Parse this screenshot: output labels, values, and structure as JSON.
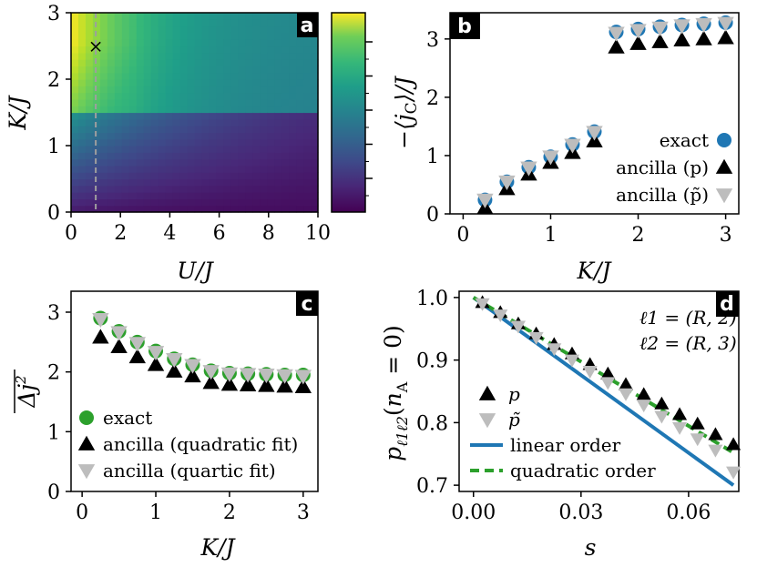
{
  "chart_data": [
    {
      "panel": "a",
      "type": "heatmap",
      "xlabel": "U/J",
      "ylabel": "K/J",
      "xlim": [
        0,
        10
      ],
      "ylim": [
        0,
        3
      ],
      "xticks": [
        "0",
        "2",
        "4",
        "6",
        "8",
        "10"
      ],
      "yticks": [
        "0",
        "1",
        "2",
        "3"
      ],
      "colormap": "viridis",
      "marker": {
        "x": 1.0,
        "y": 2.5,
        "symbol": "×",
        "color": "#9e9e9e"
      },
      "dashed_line_x": 1.0,
      "regime_boundary_k": 1.5,
      "colorbar": {
        "ticks": 5
      }
    },
    {
      "panel": "b",
      "type": "scatter",
      "xlabel": "K/J",
      "ylabel": "−⟨jc⟩/J",
      "xlim": [
        -0.15,
        3.15
      ],
      "ylim": [
        0,
        3.45
      ],
      "xticks": [
        0,
        1,
        2,
        3
      ],
      "yticks": [
        0,
        1,
        2,
        3
      ],
      "x": [
        0.25,
        0.5,
        0.75,
        1.0,
        1.25,
        1.5,
        1.75,
        2.0,
        2.25,
        2.5,
        2.75,
        3.0
      ],
      "series": [
        {
          "name": "exact",
          "marker": "circle",
          "color": "#1f77b4",
          "values": [
            0.24,
            0.55,
            0.8,
            0.98,
            1.19,
            1.41,
            3.12,
            3.17,
            3.21,
            3.24,
            3.26,
            3.28
          ]
        },
        {
          "name": "ancilla (p)",
          "marker": "triangle-up",
          "color": "#000000",
          "values": [
            0.1,
            0.43,
            0.68,
            0.88,
            1.05,
            1.25,
            2.86,
            2.92,
            2.95,
            2.98,
            3.0,
            3.02
          ]
        },
        {
          "name": "ancilla (p̃)",
          "marker": "triangle-down",
          "color": "#bdbdbd",
          "values": [
            0.24,
            0.55,
            0.79,
            0.98,
            1.18,
            1.4,
            3.1,
            3.15,
            3.19,
            3.23,
            3.25,
            3.27
          ]
        }
      ],
      "legend": "lower-right"
    },
    {
      "panel": "c",
      "type": "scatter",
      "xlabel": "K/J",
      "ylabel": "Δj²",
      "xlim": [
        -0.15,
        3.2
      ],
      "ylim": [
        0,
        3.35
      ],
      "xticks": [
        0,
        1,
        2,
        3
      ],
      "yticks": [
        0,
        1,
        2,
        3
      ],
      "x": [
        0.25,
        0.5,
        0.75,
        1.0,
        1.25,
        1.5,
        1.75,
        2.0,
        2.25,
        2.5,
        2.75,
        3.0
      ],
      "series": [
        {
          "name": "exact",
          "marker": "circle",
          "color": "#2ca02c",
          "values": [
            2.9,
            2.68,
            2.5,
            2.35,
            2.22,
            2.12,
            2.02,
            1.98,
            1.97,
            1.96,
            1.95,
            1.95
          ]
        },
        {
          "name": "ancilla (quadratic fit)",
          "marker": "triangle-up",
          "color": "#000000",
          "values": [
            2.58,
            2.42,
            2.25,
            2.12,
            2.01,
            1.93,
            1.82,
            1.79,
            1.78,
            1.77,
            1.76,
            1.75
          ]
        },
        {
          "name": "ancilla (quartic fit)",
          "marker": "triangle-down",
          "color": "#bdbdbd",
          "values": [
            2.88,
            2.66,
            2.48,
            2.33,
            2.21,
            2.11,
            2.01,
            1.97,
            1.96,
            1.95,
            1.94,
            1.93
          ]
        }
      ],
      "legend": "lower-left"
    },
    {
      "panel": "d",
      "type": "line",
      "xlabel": "s",
      "ylabel": "pℓ1ℓ2(nA = 0)",
      "xlim": [
        -0.004,
        0.074
      ],
      "ylim": [
        0.69,
        1.01
      ],
      "xticks": [
        "0.00",
        "0.03",
        "0.06"
      ],
      "xtick_values": [
        0.0,
        0.03,
        0.06
      ],
      "yticks": [
        "0.7",
        "0.8",
        "0.9",
        "1.0"
      ],
      "ytick_values": [
        0.7,
        0.8,
        0.9,
        1.0
      ],
      "annotation": [
        "ℓ1 = (R, 2)",
        "ℓ2 = (R, 3)"
      ],
      "x": [
        0.0025,
        0.0075,
        0.0125,
        0.0175,
        0.0225,
        0.0275,
        0.0325,
        0.0375,
        0.0425,
        0.0475,
        0.0525,
        0.0575,
        0.0625,
        0.0675,
        0.0725
      ],
      "series": [
        {
          "name": "p",
          "marker": "triangle-up",
          "color": "#000000",
          "values": [
            0.992,
            0.976,
            0.958,
            0.942,
            0.925,
            0.91,
            0.893,
            0.878,
            0.861,
            0.845,
            0.83,
            0.813,
            0.798,
            0.781,
            0.765
          ]
        },
        {
          "name": "p̃",
          "marker": "triangle-down",
          "color": "#bdbdbd",
          "values": [
            0.99,
            0.972,
            0.954,
            0.936,
            0.918,
            0.9,
            0.882,
            0.864,
            0.846,
            0.828,
            0.81,
            0.792,
            0.774,
            0.756,
            0.721
          ]
        },
        {
          "name": "linear order",
          "line": "solid",
          "color": "#1f77b4",
          "x_line": [
            0.0,
            0.0725
          ],
          "values_line": [
            1.0,
            0.7
          ]
        },
        {
          "name": "quadratic order",
          "line": "dashed",
          "color": "#2ca02c",
          "x_line": [
            0.0,
            0.0725
          ],
          "values_line": [
            1.0,
            0.752
          ]
        }
      ],
      "legend": "lower-left"
    }
  ]
}
